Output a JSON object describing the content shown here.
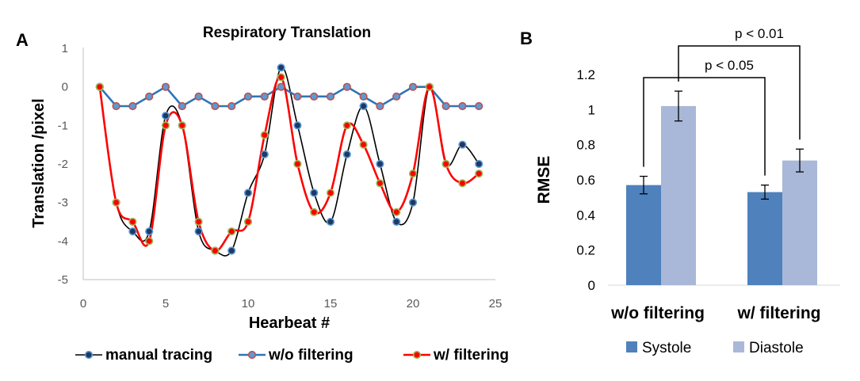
{
  "chart_data": [
    {
      "panel": "A",
      "type": "line",
      "title": "Respiratory Translation",
      "xlabel": "Hearbeat #",
      "ylabel": "Translation /pixel",
      "xlim": [
        0,
        25
      ],
      "ylim": [
        -5,
        1
      ],
      "xticks": [
        "0",
        "5",
        "10",
        "15",
        "20",
        "25"
      ],
      "yticks": [
        "1",
        "0",
        "-1",
        "-2",
        "-3",
        "-4",
        "-5"
      ],
      "x": [
        1,
        2,
        3,
        4,
        5,
        6,
        7,
        8,
        9,
        10,
        11,
        12,
        13,
        14,
        15,
        16,
        17,
        18,
        19,
        20,
        21,
        22,
        23,
        24
      ],
      "series": [
        {
          "name": "manual tracing",
          "line_color": "#000000",
          "marker_fill": "#1f3864",
          "marker_edge": "#5b9bd5",
          "smooth": true,
          "values": [
            0,
            -3,
            -3.75,
            -3.75,
            -0.75,
            -1,
            -3.75,
            -4.25,
            -4.25,
            -2.75,
            -1.75,
            0.5,
            -1,
            -2.75,
            -3.5,
            -1.75,
            -0.5,
            -2,
            -3.5,
            -3,
            0,
            -2,
            -1.5,
            -2
          ]
        },
        {
          "name": "w/o filtering",
          "line_color": "#2e75b6",
          "marker_fill": "#5b9bd5",
          "marker_edge": "#c0504d",
          "smooth": false,
          "values": [
            0,
            -0.5,
            -0.5,
            -0.25,
            0,
            -0.5,
            -0.25,
            -0.5,
            -0.5,
            -0.25,
            -0.25,
            0,
            -0.25,
            -0.25,
            -0.25,
            0,
            -0.25,
            -0.5,
            -0.25,
            0,
            0,
            -0.5,
            -0.5,
            -0.5
          ]
        },
        {
          "name": "w/ filtering",
          "line_color": "#ff0000",
          "marker_fill": "#ff0000",
          "marker_edge": "#9bbb59",
          "smooth": true,
          "values": [
            0,
            -3,
            -3.5,
            -4,
            -1,
            -1,
            -3.5,
            -4.25,
            -3.75,
            -3.5,
            -1.25,
            0.25,
            -2,
            -3.25,
            -2.75,
            -1,
            -1.5,
            -2.5,
            -3.25,
            -2.25,
            0,
            -2,
            -2.5,
            -2.25
          ]
        }
      ],
      "legend": "bottom"
    },
    {
      "panel": "B",
      "type": "bar",
      "title": "",
      "ylabel": "RMSE",
      "ylim": [
        0,
        1.2
      ],
      "yticks": [
        "1.2",
        "1",
        "0.8",
        "0.6",
        "0.4",
        "0.2",
        "0"
      ],
      "categories": [
        "w/o filtering",
        "w/ filtering"
      ],
      "series": [
        {
          "name": "Systole",
          "color": "#4f81bd",
          "values": [
            0.57,
            0.53
          ],
          "errors": [
            0.05,
            0.04
          ]
        },
        {
          "name": "Diastole",
          "color": "#a9b8d8",
          "values": [
            1.02,
            0.71
          ],
          "errors": [
            0.085,
            0.065
          ]
        }
      ],
      "annotations": [
        "p < 0.05",
        "p < 0.01"
      ],
      "legend": "bottom"
    }
  ],
  "labels": {
    "panel_a": "A",
    "panel_b": "B"
  }
}
